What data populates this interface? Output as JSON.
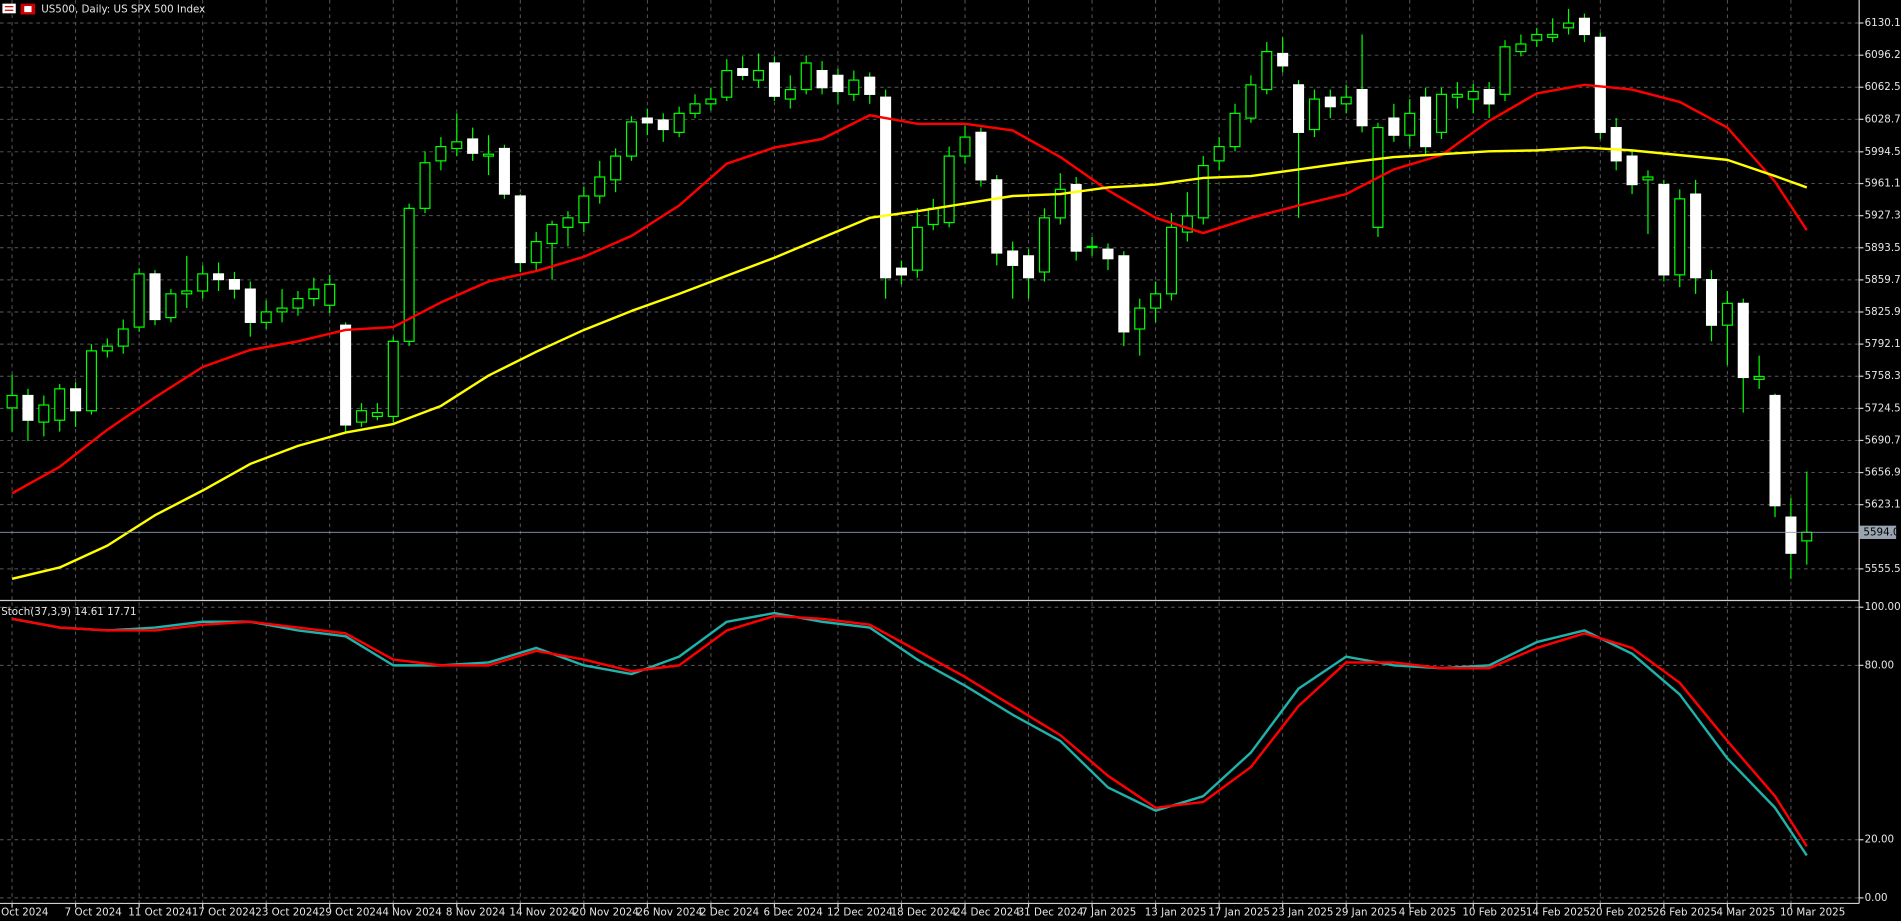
{
  "chart_data": [
    {
      "type": "candlestick",
      "title": "US500, Daily: US SPX 500 Index",
      "bull_color": "#000000",
      "bear_color": "#ffffff",
      "wick_color": "#00ff00",
      "open": [
        5725,
        5738,
        5710,
        5712,
        5745,
        5722,
        5785,
        5790,
        5810,
        5866,
        5820,
        5845,
        5848,
        5866,
        5860,
        5850,
        5815,
        5826,
        5830,
        5840,
        5833,
        5812,
        5710,
        5716,
        5716,
        5795,
        5935,
        5985,
        5998,
        6008,
        5990,
        5998,
        5948,
        5878,
        5898,
        5915,
        5920,
        5948,
        5965,
        5990,
        6030,
        6028,
        6015,
        6035,
        6045,
        6052,
        6082,
        6070,
        6088,
        6050,
        6060,
        6080,
        6075,
        6055,
        6073,
        6052,
        5872,
        5870,
        5918,
        5920,
        5990,
        6015,
        5965,
        5890,
        5885,
        5868,
        5925,
        5960,
        5895,
        5892,
        5885,
        5808,
        5830,
        5845,
        5910,
        5925,
        5985,
        6000,
        6030,
        6060,
        6098,
        6065,
        6018,
        6052,
        6045,
        6060,
        5915,
        6030,
        6012,
        6052,
        6015,
        6052,
        6050,
        6060,
        6055,
        6100,
        6112,
        6115,
        6125,
        6135,
        6115,
        6020,
        5990,
        5965,
        5960,
        5865,
        5950,
        5860,
        5812,
        5835,
        5755,
        5738,
        5610,
        5585
      ],
      "high": [
        5760,
        5745,
        5738,
        5750,
        5752,
        5792,
        5798,
        5818,
        5872,
        5870,
        5850,
        5885,
        5875,
        5878,
        5868,
        5858,
        5838,
        5850,
        5848,
        5862,
        5865,
        5815,
        5730,
        5730,
        5800,
        5940,
        5995,
        6010,
        6035,
        6020,
        6012,
        6002,
        5950,
        5910,
        5922,
        5932,
        5958,
        5985,
        5998,
        6032,
        6040,
        6035,
        6042,
        6055,
        6062,
        6092,
        6095,
        6098,
        6095,
        6075,
        6096,
        6090,
        6082,
        6080,
        6078,
        6060,
        5880,
        5935,
        5945,
        6000,
        6022,
        6020,
        5970,
        5900,
        5892,
        5935,
        5972,
        5968,
        5905,
        5898,
        5890,
        5840,
        5858,
        5930,
        5952,
        5990,
        6010,
        6045,
        6075,
        6110,
        6115,
        6070,
        6060,
        6060,
        6065,
        6118,
        6025,
        6045,
        6050,
        6062,
        6062,
        6068,
        6066,
        6068,
        6112,
        6118,
        6125,
        6135,
        6145,
        6140,
        6120,
        6030,
        5995,
        5975,
        5965,
        5955,
        5965,
        5870,
        5848,
        5840,
        5780,
        5740,
        5630,
        5658
      ],
      "low": [
        5700,
        5690,
        5695,
        5700,
        5705,
        5718,
        5778,
        5782,
        5805,
        5812,
        5815,
        5830,
        5840,
        5848,
        5840,
        5800,
        5808,
        5815,
        5822,
        5832,
        5825,
        5700,
        5705,
        5712,
        5710,
        5790,
        5930,
        5975,
        5990,
        5985,
        5970,
        5945,
        5868,
        5870,
        5860,
        5895,
        5910,
        5940,
        5952,
        5985,
        6012,
        6005,
        6010,
        6030,
        6038,
        6048,
        6070,
        6062,
        6048,
        6040,
        6055,
        6055,
        6045,
        6048,
        6045,
        5840,
        5855,
        5862,
        5912,
        5915,
        5982,
        5958,
        5875,
        5840,
        5840,
        5858,
        5918,
        5880,
        5885,
        5870,
        5790,
        5780,
        5815,
        5838,
        5900,
        5918,
        5975,
        5995,
        6025,
        6055,
        6078,
        5925,
        6010,
        6030,
        6035,
        6015,
        5905,
        6005,
        6000,
        5990,
        6008,
        6040,
        6035,
        6030,
        6048,
        6095,
        6105,
        6110,
        6118,
        6110,
        6008,
        5975,
        5950,
        5908,
        5858,
        5852,
        5845,
        5795,
        5770,
        5720,
        5745,
        5610,
        5545,
        5560
      ],
      "close": [
        5738,
        5712,
        5728,
        5745,
        5722,
        5785,
        5790,
        5808,
        5866,
        5818,
        5845,
        5848,
        5866,
        5860,
        5850,
        5815,
        5826,
        5830,
        5840,
        5850,
        5855,
        5707,
        5722,
        5720,
        5795,
        5935,
        5983,
        6000,
        6005,
        5993,
        5992,
        5950,
        5878,
        5900,
        5918,
        5925,
        5948,
        5968,
        5990,
        6026,
        6025,
        6018,
        6035,
        6045,
        6050,
        6080,
        6075,
        6080,
        6053,
        6060,
        6088,
        6062,
        6058,
        6070,
        6055,
        5862,
        5865,
        5915,
        5935,
        5990,
        6010,
        5965,
        5888,
        5875,
        5862,
        5925,
        5955,
        5890,
        5895,
        5882,
        5805,
        5830,
        5845,
        5915,
        5927,
        5980,
        6000,
        6035,
        6065,
        6100,
        6085,
        6015,
        6050,
        6042,
        6052,
        6022,
        6020,
        6012,
        6035,
        6000,
        6055,
        6055,
        6058,
        6045,
        6105,
        6108,
        6118,
        6118,
        6130,
        6118,
        6015,
        5985,
        5960,
        5968,
        5865,
        5945,
        5862,
        5812,
        5835,
        5757,
        5758,
        5622,
        5572,
        5594
      ],
      "series": [
        {
          "color": "#ff0000",
          "x": [
            0,
            3,
            6,
            9,
            12,
            15,
            18,
            21,
            24,
            27,
            30,
            33,
            36,
            39,
            42,
            45,
            48,
            51,
            54,
            57,
            60,
            63,
            66,
            69,
            72,
            75,
            78,
            81,
            84,
            87,
            90,
            93,
            96,
            99,
            102,
            105,
            108,
            111,
            113
          ],
          "values": [
            5635,
            5663,
            5702,
            5736,
            5768,
            5786,
            5795,
            5807,
            5810,
            5836,
            5858,
            5869,
            5884,
            5906,
            5938,
            5982,
            5999,
            6008,
            6033,
            6024,
            6024,
            6017,
            5989,
            5954,
            5925,
            5909,
            5925,
            5938,
            5950,
            5976,
            5991,
            6027,
            6056,
            6065,
            6060,
            6047,
            6020,
            5963,
            5912
          ]
        },
        {
          "color": "#ffff00",
          "x": [
            0,
            3,
            6,
            9,
            12,
            15,
            18,
            21,
            24,
            27,
            30,
            33,
            36,
            39,
            42,
            45,
            48,
            51,
            54,
            57,
            60,
            63,
            66,
            69,
            72,
            75,
            78,
            81,
            84,
            87,
            90,
            93,
            96,
            99,
            102,
            105,
            108,
            111,
            113
          ],
          "values": [
            5545,
            5557,
            5580,
            5612,
            5638,
            5666,
            5685,
            5699,
            5708,
            5727,
            5759,
            5784,
            5807,
            5827,
            5845,
            5864,
            5883,
            5904,
            5925,
            5932,
            5940,
            5948,
            5950,
            5957,
            5960,
            5967,
            5969,
            5976,
            5983,
            5989,
            5992,
            5995,
            5996,
            5999,
            5996,
            5991,
            5986,
            5969,
            5957
          ]
        }
      ],
      "current_price": {
        "value": 5594.0,
        "label": "5594.0"
      },
      "xlim": [
        -0.76,
        116.26
      ],
      "ylim": [
        5522.9,
        6154.3
      ],
      "yticks": [
        6130.1,
        6096.2,
        6062.5,
        6028.7,
        5994.5,
        5961.1,
        5927.3,
        5893.5,
        5859.7,
        5825.9,
        5792.1,
        5758.3,
        5724.5,
        5690.7,
        5656.9,
        5623.1,
        5555.5
      ],
      "xticks": [
        {
          "value": 0,
          "label": "Oct 2024"
        },
        {
          "value": 4,
          "label": "7 Oct 2024"
        },
        {
          "value": 8,
          "label": "11 Oct 2024"
        },
        {
          "value": 12,
          "label": "17 Oct 2024"
        },
        {
          "value": 16,
          "label": "23 Oct 2024"
        },
        {
          "value": 20,
          "label": "29 Oct 2024"
        },
        {
          "value": 24,
          "label": "4 Nov 2024"
        },
        {
          "value": 28,
          "label": "8 Nov 2024"
        },
        {
          "value": 32,
          "label": "14 Nov 2024"
        },
        {
          "value": 36,
          "label": "20 Nov 2024"
        },
        {
          "value": 40,
          "label": "26 Nov 2024"
        },
        {
          "value": 44,
          "label": "2 Dec 2024"
        },
        {
          "value": 48,
          "label": "6 Dec 2024"
        },
        {
          "value": 52,
          "label": "12 Dec 2024"
        },
        {
          "value": 56,
          "label": "18 Dec 2024"
        },
        {
          "value": 60,
          "label": "24 Dec 2024"
        },
        {
          "value": 64,
          "label": "31 Dec 2024"
        },
        {
          "value": 68,
          "label": "7 Jan 2025"
        },
        {
          "value": 72,
          "label": "13 Jan 2025"
        },
        {
          "value": 76,
          "label": "17 Jan 2025"
        },
        {
          "value": 80,
          "label": "23 Jan 2025"
        },
        {
          "value": 84,
          "label": "29 Jan 2025"
        },
        {
          "value": 88,
          "label": "4 Feb 2025"
        },
        {
          "value": 92,
          "label": "10 Feb 2025"
        },
        {
          "value": 96,
          "label": "14 Feb 2025"
        },
        {
          "value": 100,
          "label": "20 Feb 2025"
        },
        {
          "value": 104,
          "label": "26 Feb 2025"
        },
        {
          "value": 108,
          "label": "4 Mar 2025"
        },
        {
          "value": 112,
          "label": "10 Mar 2025"
        }
      ],
      "grid": true
    },
    {
      "type": "line",
      "title": "Stoch(37,3,9) 14.61 17.71",
      "series": [
        {
          "color": "#20b2aa",
          "x": [
            0,
            3,
            6,
            9,
            12,
            15,
            18,
            21,
            24,
            27,
            30,
            33,
            36,
            39,
            42,
            45,
            48,
            51,
            54,
            57,
            60,
            63,
            66,
            69,
            72,
            75,
            78,
            81,
            84,
            87,
            90,
            93,
            96,
            99,
            102,
            105,
            108,
            111,
            113
          ],
          "values": [
            96,
            93,
            92,
            93,
            95,
            95,
            92,
            90,
            80,
            80,
            81,
            86,
            80,
            77,
            83,
            95,
            98,
            95,
            93,
            82,
            73,
            63,
            54,
            38,
            30,
            35,
            50,
            72,
            83,
            80,
            79,
            80,
            88,
            92,
            84,
            70,
            48,
            31,
            14.61
          ]
        },
        {
          "color": "#ff0000",
          "x": [
            0,
            3,
            6,
            9,
            12,
            15,
            18,
            21,
            24,
            27,
            30,
            33,
            36,
            39,
            42,
            45,
            48,
            51,
            54,
            57,
            60,
            63,
            66,
            69,
            72,
            75,
            78,
            81,
            84,
            87,
            90,
            93,
            96,
            99,
            102,
            105,
            108,
            111,
            113
          ],
          "values": [
            96,
            93,
            92,
            92,
            94,
            95,
            93,
            91,
            82,
            80,
            80,
            85,
            82,
            78,
            80,
            92,
            97,
            96,
            94,
            85,
            76,
            66,
            56,
            42,
            31,
            33,
            45,
            66,
            81,
            81,
            79,
            79,
            86,
            91,
            86,
            74,
            54,
            35,
            17.71
          ]
        }
      ],
      "xlim": [
        -0.76,
        116.26
      ],
      "ylim": [
        -1.7,
        101.7
      ],
      "yticks": [
        {
          "value": 100,
          "label": "100.00"
        },
        {
          "value": 80,
          "label": "80.00"
        },
        {
          "value": 20,
          "label": "20.00"
        },
        {
          "value": 0,
          "label": "0.00"
        }
      ],
      "grid": true
    }
  ]
}
